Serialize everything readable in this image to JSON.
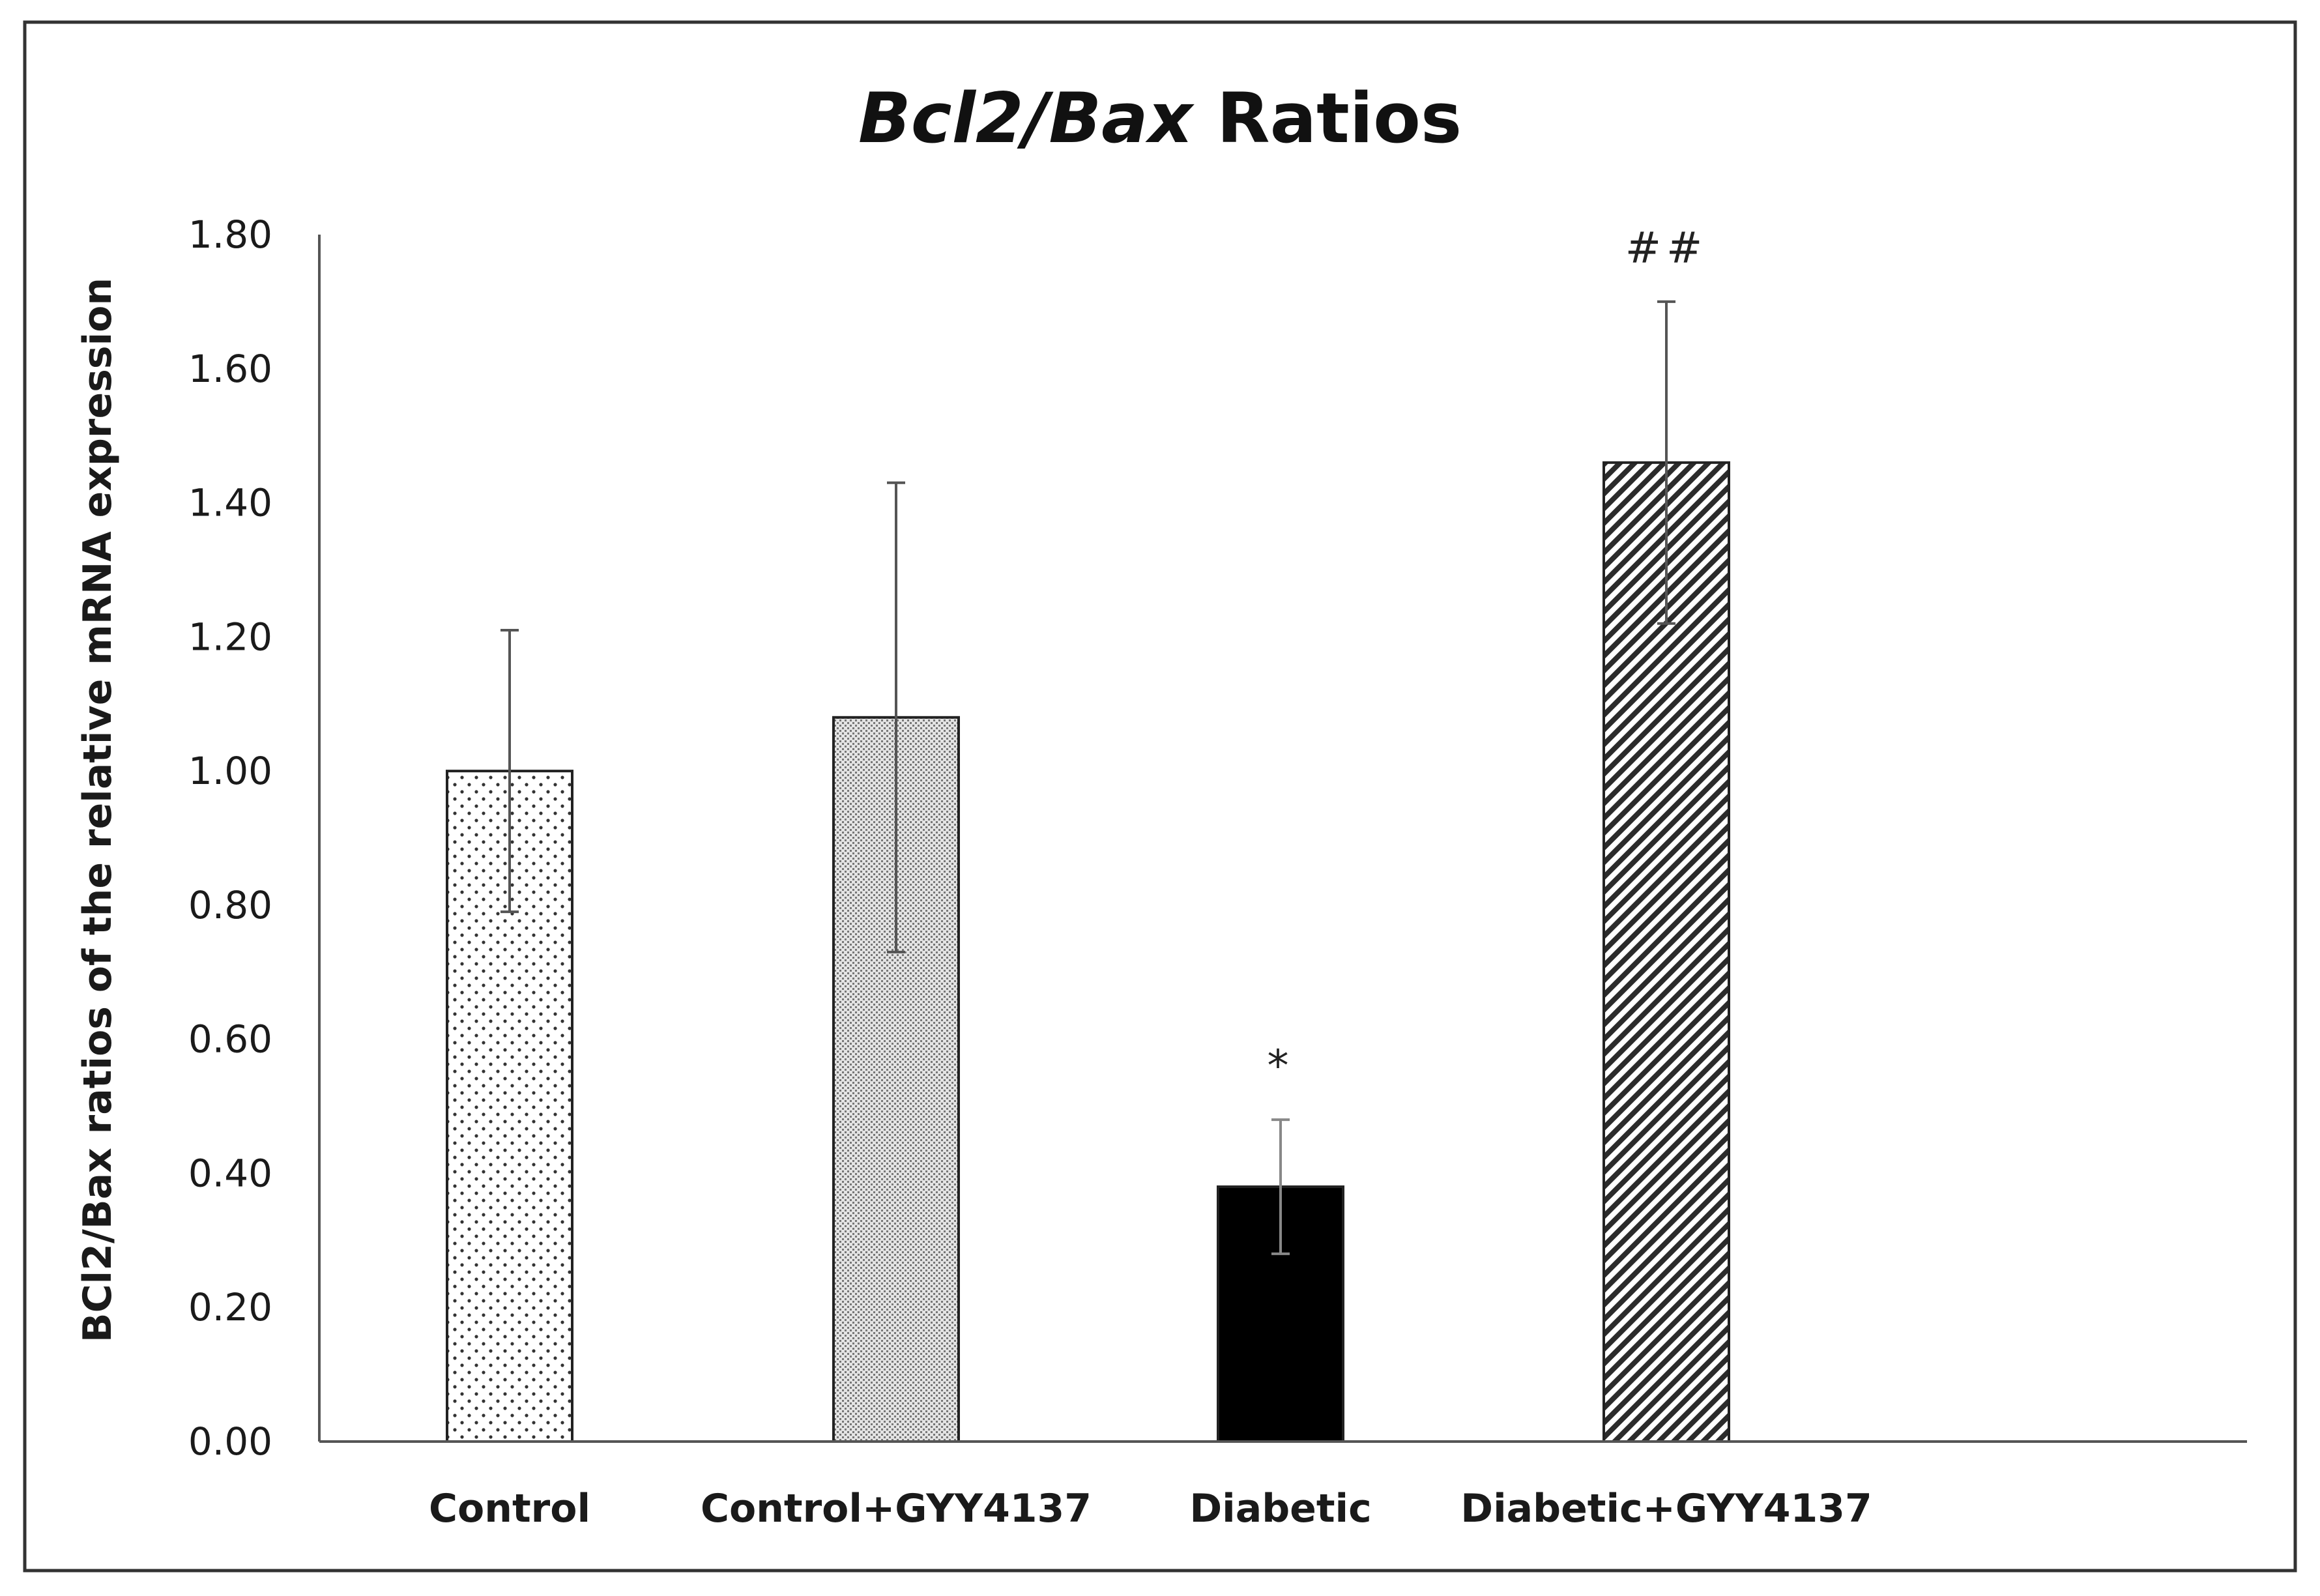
{
  "chart_data": {
    "type": "bar",
    "title": {
      "italic_part": "Bcl2/Bax",
      "rest": " Ratios"
    },
    "ylabel": "BCl2/Bax ratios of the relative mRNA expression",
    "xlabel": "",
    "ylim": [
      0,
      1.8
    ],
    "yticks": [
      "0.00",
      "0.20",
      "0.40",
      "0.60",
      "0.80",
      "1.00",
      "1.20",
      "1.40",
      "1.60",
      "1.80"
    ],
    "categories": [
      "Control",
      "Control+GYY4137",
      "Diabetic",
      "Diabetic+GYY4137"
    ],
    "values": [
      1.0,
      1.08,
      0.38,
      1.46
    ],
    "errors": [
      0.21,
      0.35,
      0.1,
      0.24
    ],
    "annotations": [
      "",
      "",
      "*",
      "##"
    ],
    "fills": [
      "dots",
      "fine-dots",
      "solid",
      "diagonal-hatch"
    ],
    "grid": false,
    "legend": "none"
  },
  "colors": {
    "axis": "#555555",
    "bar_edge": "#222222",
    "solid_fill": "#000000",
    "frame": "#333333"
  }
}
